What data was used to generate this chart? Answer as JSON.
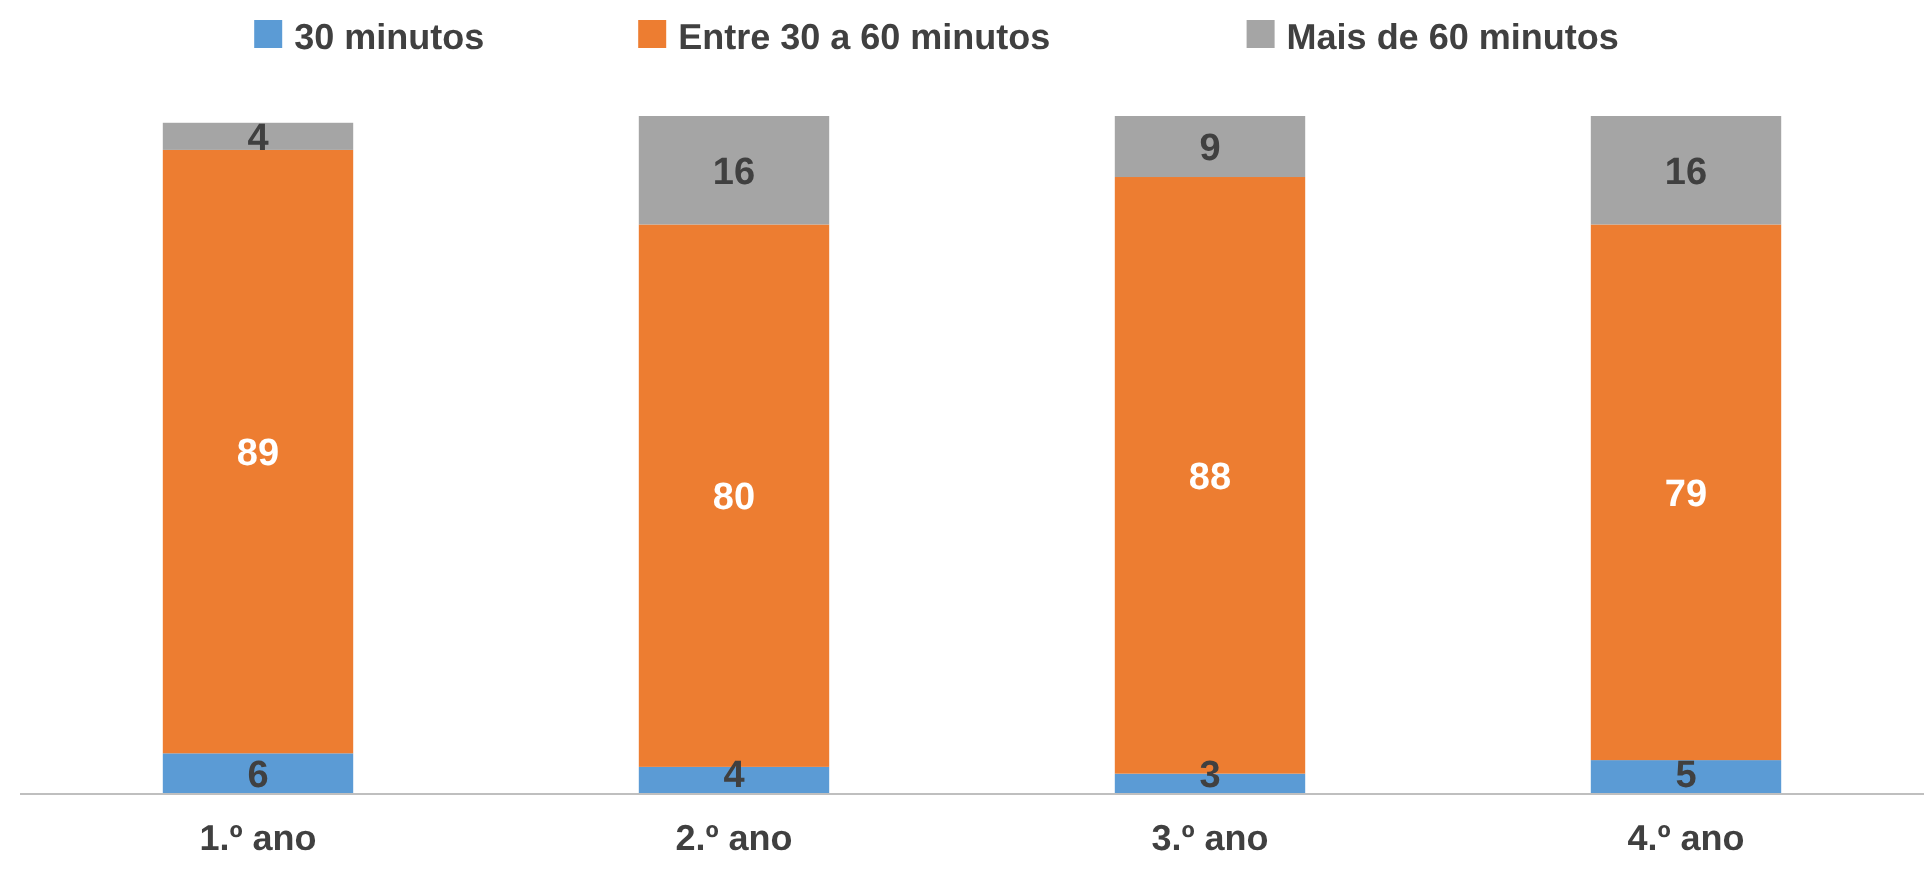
{
  "chart_data": {
    "type": "bar",
    "stacked": true,
    "data_labels": true,
    "legend": "top",
    "categories": [
      "1.º ano",
      "2.º ano",
      "3.º ano",
      "4.º ano"
    ],
    "series": [
      {
        "name": "30 minutos",
        "color": "#5b9bd5",
        "values": [
          6,
          4,
          3,
          5
        ]
      },
      {
        "name": "Entre 30 a 60 minutos",
        "color": "#ed7d31",
        "values": [
          89,
          80,
          88,
          79
        ]
      },
      {
        "name": "Mais de 60 minutos",
        "color": "#a5a5a5",
        "values": [
          4,
          16,
          9,
          16
        ]
      }
    ]
  }
}
